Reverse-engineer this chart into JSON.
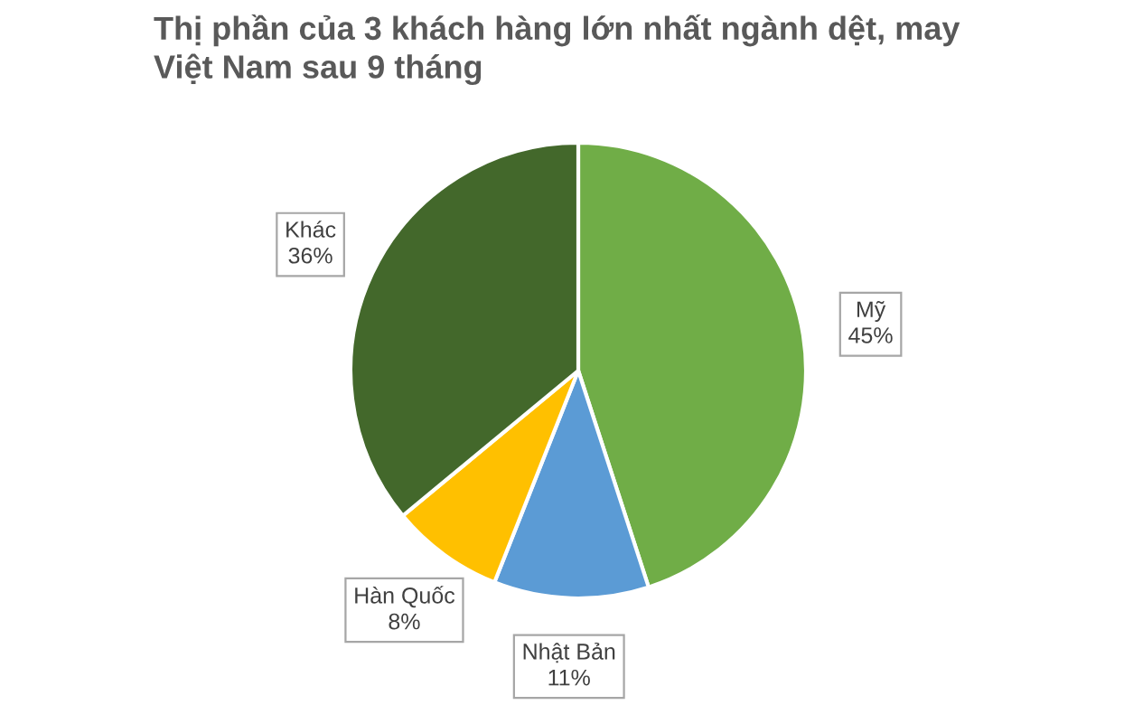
{
  "chart_data": {
    "type": "pie",
    "title": "Thị phần của 3 khách hàng lớn nhất ngành dệt, may\nViệt Nam sau 9 tháng",
    "categories": [
      "Mỹ",
      "Nhật Bản",
      "Hàn Quốc",
      "Khác"
    ],
    "values": [
      45,
      11,
      8,
      36
    ],
    "value_labels": [
      "45%",
      "11%",
      "8%",
      "36%"
    ],
    "colors": [
      "#70ad47",
      "#5b9bd5",
      "#ffc000",
      "#43682b"
    ],
    "legend": false
  }
}
